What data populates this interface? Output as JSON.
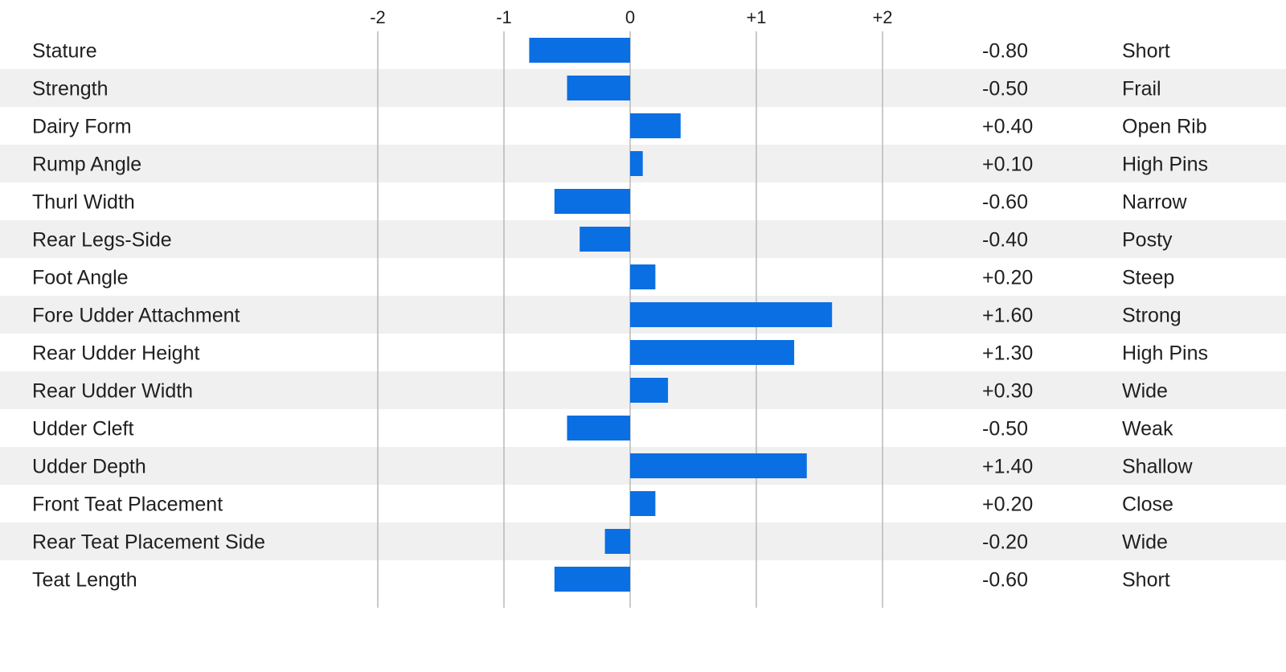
{
  "chart_data": {
    "type": "bar",
    "orientation": "horizontal",
    "xlim": [
      -2,
      2
    ],
    "xticks": [
      -2,
      -1,
      0,
      1,
      2
    ],
    "xtick_labels": [
      "-2",
      "-1",
      "0",
      "+1",
      "+2"
    ],
    "grid": true,
    "bar_color": "#0a6fe3",
    "stripe_color": "#f0f0f0",
    "grid_color": "#b8b8b8",
    "categories": [
      "Stature",
      "Strength",
      "Dairy Form",
      "Rump Angle",
      "Thurl Width",
      "Rear Legs-Side",
      "Foot Angle",
      "Fore Udder Attachment",
      "Rear Udder Height",
      "Rear Udder Width",
      "Udder Cleft",
      "Udder Depth",
      "Front Teat Placement",
      "Rear Teat Placement Side",
      "Teat Length"
    ],
    "values": [
      -0.8,
      -0.5,
      0.4,
      0.1,
      -0.6,
      -0.4,
      0.2,
      1.6,
      1.3,
      0.3,
      -0.5,
      1.4,
      0.2,
      -0.2,
      -0.6
    ],
    "value_labels": [
      "-0.80",
      "-0.50",
      "+0.40",
      "+0.10",
      "-0.60",
      "-0.40",
      "+0.20",
      "+1.60",
      "+1.30",
      "+0.30",
      "-0.50",
      "+1.40",
      "+0.20",
      "-0.20",
      "-0.60"
    ],
    "descriptors": [
      "Short",
      "Frail",
      "Open Rib",
      "High Pins",
      "Narrow",
      "Posty",
      "Steep",
      "Strong",
      "High Pins",
      "Wide",
      "Weak",
      "Shallow",
      "Close",
      "Wide",
      "Short"
    ]
  }
}
